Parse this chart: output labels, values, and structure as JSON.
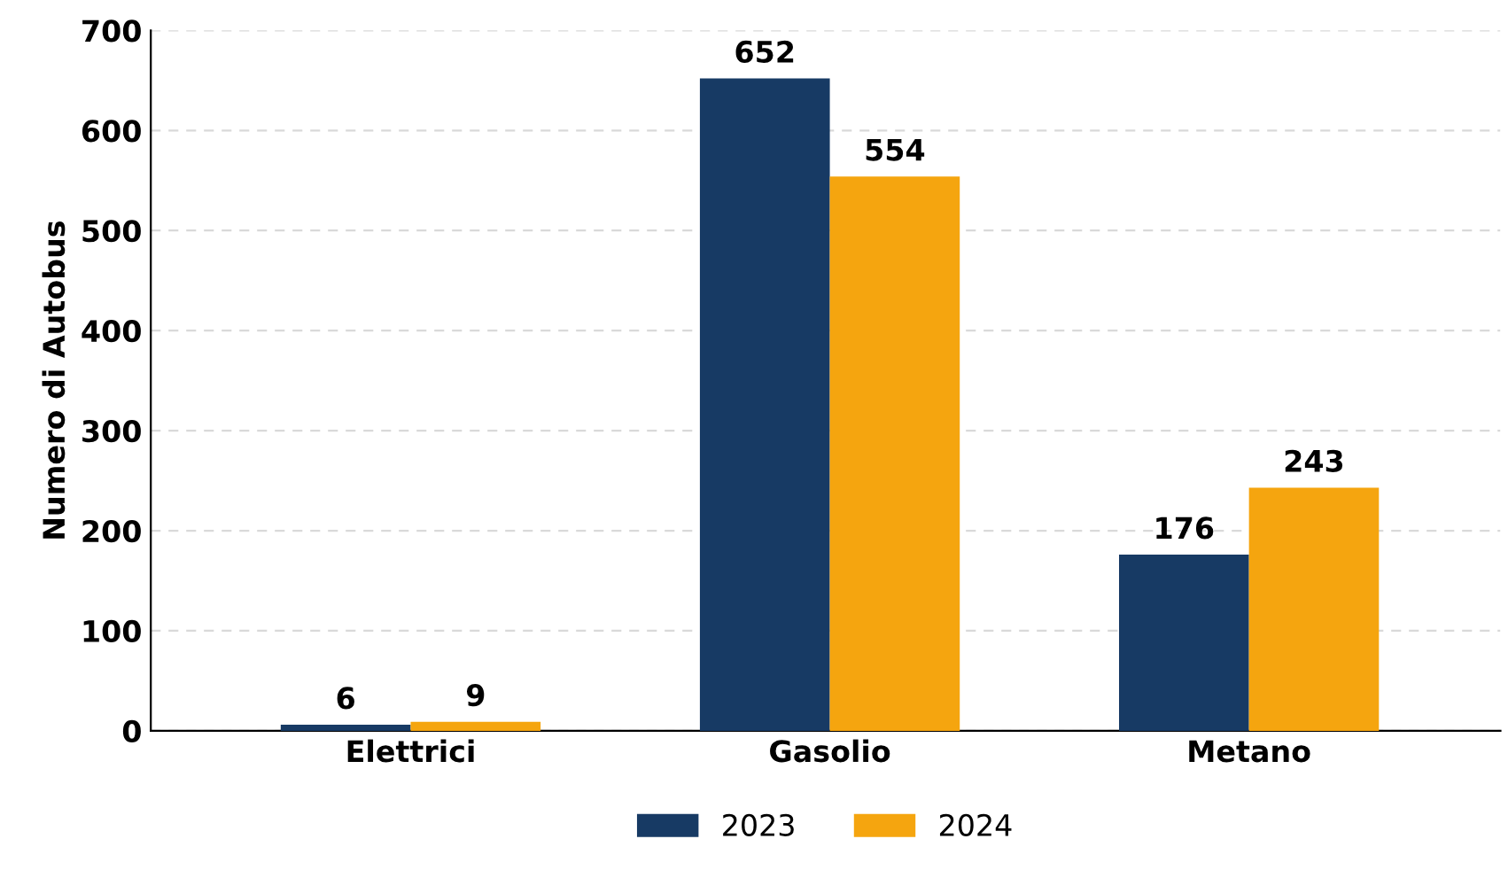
{
  "chart_data": {
    "type": "bar",
    "ylabel": "Numero di Autobus",
    "categories": [
      "Elettrici",
      "Gasolio",
      "Metano"
    ],
    "series": [
      {
        "name": "2023",
        "color": "#173a64",
        "values": [
          6,
          652,
          176
        ]
      },
      {
        "name": "2024",
        "color": "#f5a50f",
        "values": [
          9,
          554,
          243
        ]
      }
    ],
    "ylim": [
      0,
      700
    ],
    "yticks": [
      0,
      100,
      200,
      300,
      400,
      500,
      600,
      700
    ],
    "grid": "y",
    "legend": "bottom",
    "data_labels": true
  }
}
